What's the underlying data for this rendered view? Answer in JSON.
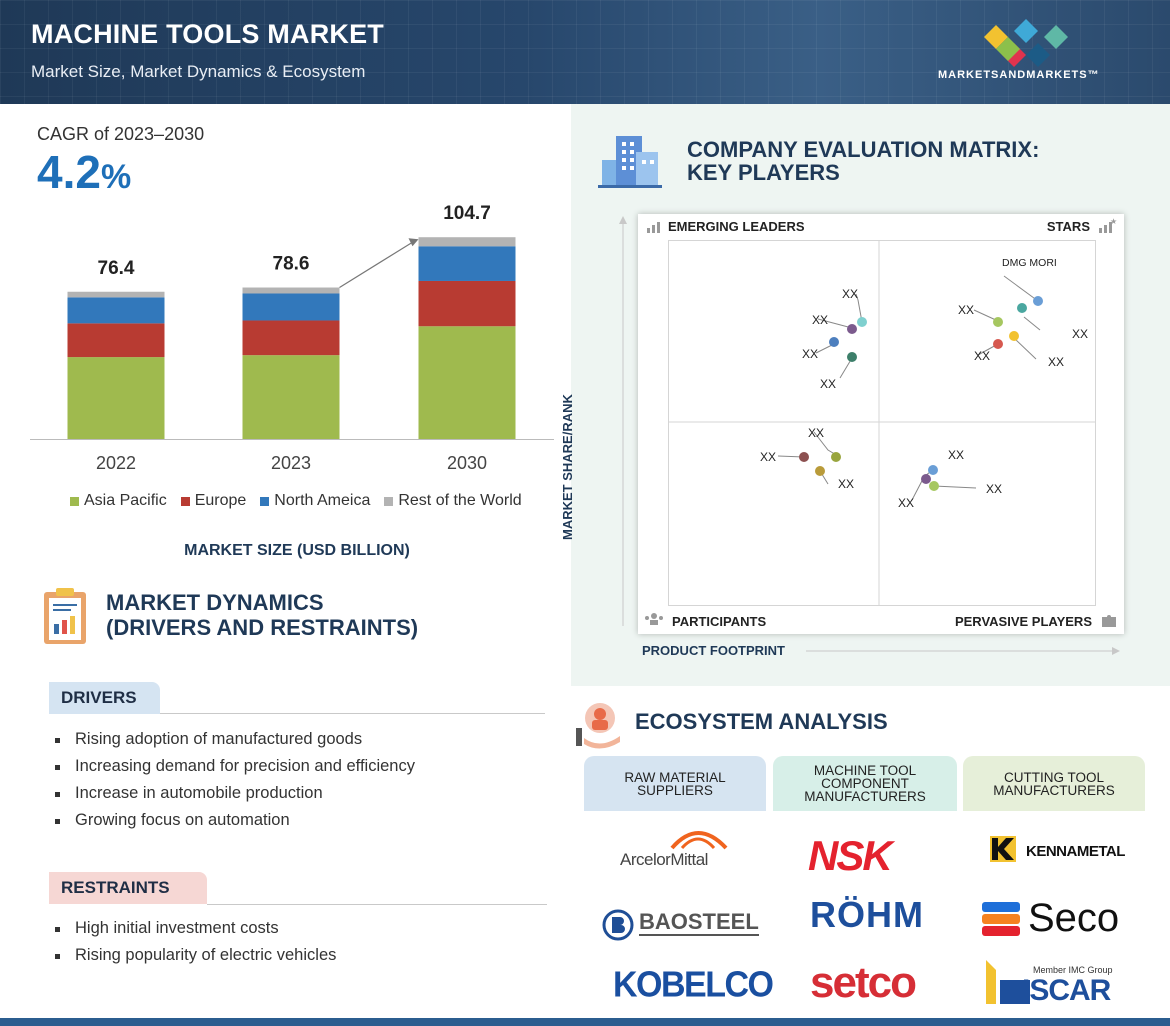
{
  "header": {
    "title": "MACHINE TOOLS MARKET",
    "subtitle": "Market Size, Market Dynamics & Ecosystem",
    "brand": "MARKETSANDMARKETS™"
  },
  "cagr": {
    "label": "CAGR of 2023–2030",
    "value": "4.2",
    "unit": "%"
  },
  "chart_data": {
    "type": "bar",
    "stacked": true,
    "categories": [
      "2022",
      "2023",
      "2030"
    ],
    "totals": [
      "76.4",
      "78.6",
      "104.7"
    ],
    "series": [
      {
        "name": "Asia Pacific",
        "color": "#9fba4e",
        "values": [
          42.5,
          43.5,
          58.5
        ]
      },
      {
        "name": "Europe",
        "color": "#b83b32",
        "values": [
          17.5,
          18.0,
          23.5
        ]
      },
      {
        "name": "North Ameica",
        "color": "#3278bb",
        "values": [
          13.5,
          14.0,
          18.0
        ]
      },
      {
        "name": "Rest of the World",
        "color": "#b3b3b3",
        "values": [
          2.9,
          3.1,
          4.7
        ]
      }
    ],
    "ylim": [
      0,
      110
    ],
    "caption": "MARKET SIZE (USD BILLION)",
    "xlabel": "",
    "ylabel": ""
  },
  "dynamics": {
    "title_line1": "MARKET DYNAMICS",
    "title_line2": "(DRIVERS AND RESTRAINTS)",
    "drivers_label": "DRIVERS",
    "drivers": [
      "Rising adoption of manufactured goods",
      "Increasing demand for precision and efficiency",
      "Increase in automobile production",
      "Growing focus on automation"
    ],
    "restraints_label": "RESTRAINTS",
    "restraints": [
      "High initial investment costs",
      "Rising popularity of electric vehicles"
    ]
  },
  "matrix": {
    "title_line1": "COMPANY EVALUATION MATRIX:",
    "title_line2": "KEY PLAYERS",
    "q_emerging": "EMERGING LEADERS",
    "q_stars": "STARS",
    "q_participants": "PARTICIPANTS",
    "q_pervasive": "PERVASIVE PLAYERS",
    "y_axis": "MARKET SHARE/RANK",
    "x_axis": "PRODUCT FOOTPRINT",
    "player_label": "XX",
    "named_player": "DMG MORI",
    "dot_colors": [
      "#7fd0cf",
      "#7b5a8d",
      "#4d7fbe",
      "#3d7f6a",
      "#a6c760",
      "#d6584f",
      "#f2c230",
      "#4aa7a0",
      "#6a9ed6",
      "#b99b3a",
      "#8c5050",
      "#99a53e"
    ]
  },
  "ecosystem": {
    "title": "ECOSYSTEM ANALYSIS",
    "columns": [
      {
        "label": "RAW MATERIAL SUPPLIERS",
        "logos": [
          "ArcelorMittal",
          "BAOSTEEL",
          "KOBELCO"
        ]
      },
      {
        "label": "MACHINE TOOL COMPONENT MANUFACTURERS",
        "logos": [
          "NSK",
          "RÖHM",
          "setco"
        ]
      },
      {
        "label": "CUTTING TOOL MANUFACTURERS",
        "logos": [
          "KENNAMETAL",
          "Seco",
          "ISCAR"
        ]
      }
    ],
    "iscar_tag": "Member IMC Group"
  }
}
